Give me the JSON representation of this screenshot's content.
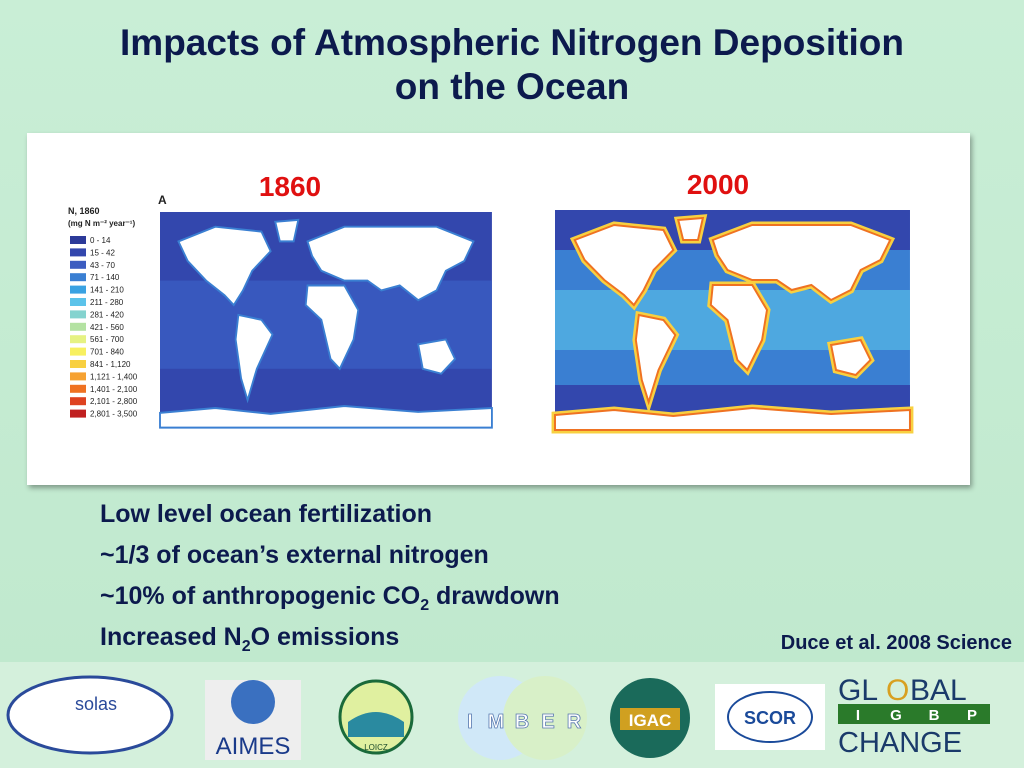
{
  "title": {
    "line1": "Impacts of Atmospheric Nitrogen Deposition",
    "line2": "on the Ocean"
  },
  "figure": {
    "panel_letter": "A",
    "map_labels": [
      "1860",
      "2000"
    ],
    "legend": {
      "title": "N, 1860",
      "units": "(mg N m⁻² year⁻¹)",
      "items": [
        {
          "label": "0 - 14",
          "color": "#2c3a99"
        },
        {
          "label": "15 - 42",
          "color": "#3347ad"
        },
        {
          "label": "43 - 70",
          "color": "#3c5cc0"
        },
        {
          "label": "71 - 140",
          "color": "#3a7fd2"
        },
        {
          "label": "141 - 210",
          "color": "#3aa2e2"
        },
        {
          "label": "211 - 280",
          "color": "#5cc3ea"
        },
        {
          "label": "281 - 420",
          "color": "#84d3cf"
        },
        {
          "label": "421 - 560",
          "color": "#b4e2a2"
        },
        {
          "label": "561 - 700",
          "color": "#e6f283"
        },
        {
          "label": "701 - 840",
          "color": "#f8f060"
        },
        {
          "label": "841 - 1,120",
          "color": "#f8d040"
        },
        {
          "label": "1,121 - 1,400",
          "color": "#f6a232"
        },
        {
          "label": "1,401 - 2,100",
          "color": "#ef7222"
        },
        {
          "label": "2,101 - 2,800",
          "color": "#de4220"
        },
        {
          "label": "2,801 - 3,500",
          "color": "#c02020"
        }
      ]
    }
  },
  "bullets": [
    {
      "text": "Low level ocean fertilization"
    },
    {
      "text": "~1/3 of ocean’s external nitrogen"
    },
    {
      "text": "~10% of anthropogenic CO",
      "sub": "2",
      "rest": " drawdown"
    },
    {
      "text": "Increased N",
      "sub": "2",
      "rest": "O emissions"
    }
  ],
  "citation": "Duce et al. 2008 Science",
  "logos": {
    "solas": "solas",
    "aimes": "AIMES",
    "loicz": "LOICZ",
    "imber": [
      "I",
      "M",
      "B",
      "E",
      "R"
    ],
    "igac": "IGAC",
    "scor": "SCOR",
    "igbp": [
      "GL",
      "O",
      "BAL",
      "I",
      "G",
      "B",
      "P",
      "CHANGE"
    ]
  }
}
